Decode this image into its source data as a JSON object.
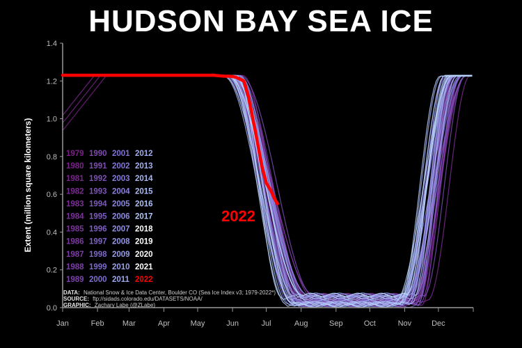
{
  "title": "HUDSON BAY SEA ICE",
  "source": {
    "data_label": "DATA:",
    "data_text": "National Snow & Ice Data Center, Boulder CO (Sea Ice Index v3; 1979-2022*)",
    "source_label": "SOURCE:",
    "source_text": "ftp://sidads.colorado.edu/DATASETS/NOAA/",
    "graphic_label": "GRAPHIC:",
    "graphic_text": "Zachary Labe (@ZLabe)"
  },
  "chart_data": {
    "type": "line",
    "title": "HUDSON BAY SEA ICE",
    "xlabel": "",
    "ylabel": "Extent (million square kilometers)",
    "ylim": [
      0,
      1.4
    ],
    "yticks": [
      "0.0",
      "0.2",
      "0.4",
      "0.6",
      "0.8",
      "1.0",
      "1.2",
      "1.4"
    ],
    "xlim": [
      1,
      366
    ],
    "month_ticks": [
      "Jan",
      "Feb",
      "Mar",
      "Apr",
      "May",
      "Jun",
      "Jul",
      "Aug",
      "Sep",
      "Oct",
      "Nov",
      "Dec"
    ],
    "annotation": "2022",
    "highlight_year": 2022,
    "colors": {
      "highlight": "#ff0000",
      "old": "#7a1f86",
      "mid": "#7f6fd6",
      "recent": "#bfe0ff",
      "axis": "#999999"
    },
    "legend_columns": [
      [
        "1979",
        "1980",
        "1981",
        "1982",
        "1983",
        "1984",
        "1985",
        "1986",
        "1987",
        "1988",
        "1989"
      ],
      [
        "1990",
        "1991",
        "1992",
        "1993",
        "1994",
        "1995",
        "1996",
        "1997",
        "1998",
        "1999",
        "2000"
      ],
      [
        "2001",
        "2002",
        "2003",
        "2004",
        "2005",
        "2006",
        "2007",
        "2008",
        "2009",
        "2010",
        "2011"
      ],
      [
        "2012",
        "2013",
        "2014",
        "2015",
        "2016",
        "2017",
        "2018",
        "2019",
        "2020",
        "2021",
        "2022"
      ]
    ],
    "series_2022": {
      "x": [
        1,
        15,
        40,
        80,
        110,
        135,
        145,
        150,
        155,
        162,
        166,
        170,
        174,
        178,
        182,
        186,
        189,
        192
      ],
      "y": [
        1.23,
        1.23,
        1.23,
        1.23,
        1.23,
        1.23,
        1.225,
        1.225,
        1.22,
        1.2,
        1.12,
        1.0,
        0.88,
        0.75,
        0.66,
        0.62,
        0.58,
        0.55
      ]
    },
    "historical_envelope": {
      "melt_start_day": [
        135,
        165
      ],
      "ice_free_day": [
        190,
        232
      ],
      "freeze_start_day": [
        290,
        330
      ],
      "full_cover_day": [
        335,
        366
      ],
      "summer_min": [
        0.01,
        0.07
      ]
    }
  }
}
